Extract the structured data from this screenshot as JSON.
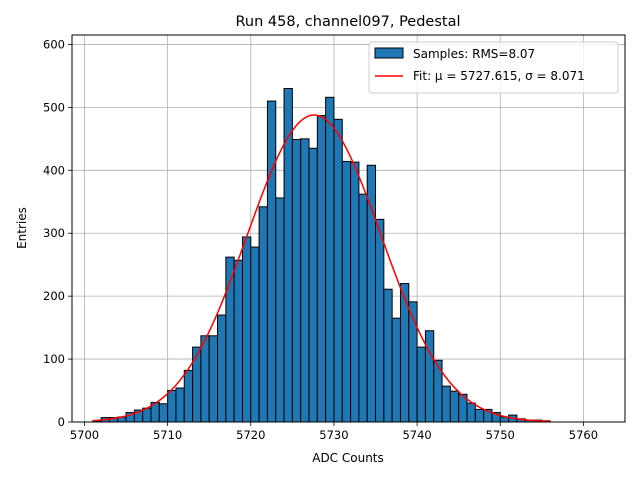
{
  "chart_data": {
    "type": "bar",
    "title": "Run 458, channel097, Pedestal",
    "xlabel": "ADC Counts",
    "ylabel": "Entries",
    "xlim": [
      5698.5,
      5765
    ],
    "ylim": [
      0,
      615
    ],
    "xticks": [
      5700,
      5710,
      5720,
      5730,
      5740,
      5750,
      5760
    ],
    "yticks": [
      0,
      100,
      200,
      300,
      400,
      500,
      600
    ],
    "grid": true,
    "legend_position": "top-right",
    "bin_width": 1,
    "bins": {
      "left_edges": [
        5701,
        5702,
        5703,
        5704,
        5705,
        5706,
        5707,
        5708,
        5709,
        5710,
        5711,
        5712,
        5713,
        5714,
        5715,
        5716,
        5717,
        5718,
        5719,
        5720,
        5721,
        5722,
        5723,
        5724,
        5725,
        5726,
        5727,
        5728,
        5729,
        5730,
        5731,
        5732,
        5733,
        5734,
        5735,
        5736,
        5737,
        5738,
        5739,
        5740,
        5741,
        5742,
        5743,
        5744,
        5745,
        5746,
        5747,
        5748,
        5749,
        5750,
        5751,
        5752,
        5753,
        5754,
        5755
      ],
      "counts": [
        2,
        7,
        7,
        8,
        15,
        19,
        22,
        31,
        29,
        50,
        54,
        82,
        119,
        137,
        137,
        170,
        262,
        257,
        294,
        278,
        342,
        510,
        356,
        530,
        449,
        450,
        435,
        487,
        516,
        481,
        414,
        413,
        362,
        408,
        322,
        211,
        165,
        220,
        191,
        119,
        145,
        98,
        57,
        49,
        44,
        30,
        20,
        20,
        15,
        8,
        11,
        5,
        3,
        3,
        2
      ]
    },
    "series": [
      {
        "name": "Samples: RMS=8.07",
        "kind": "histogram",
        "color": "#1f77b4",
        "edge_color": "#000000"
      },
      {
        "name": "Fit: μ = 5727.615, σ = 8.071",
        "kind": "line",
        "color": "#ff0000",
        "mu": 5727.615,
        "sigma": 8.071,
        "x_range": [
          5701,
          5756
        ]
      }
    ]
  }
}
